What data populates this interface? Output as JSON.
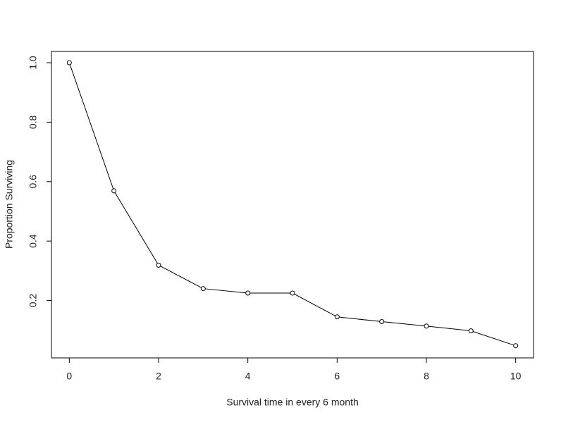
{
  "chart_data": {
    "type": "line",
    "x_label": "Survival time in every 6 month",
    "y_label": "Proportion Surviving",
    "x": [
      0,
      1,
      2,
      3,
      4,
      5,
      6,
      7,
      8,
      9,
      10
    ],
    "series": [
      {
        "name": "Proportion Surviving",
        "color": "#000000",
        "values": [
          1.0,
          0.569,
          0.319,
          0.24,
          0.225,
          0.225,
          0.145,
          0.129,
          0.114,
          0.098,
          0.048
        ]
      }
    ],
    "xlim": [
      -0.4,
      10.4
    ],
    "xticks": [
      0,
      2,
      4,
      6,
      8,
      10
    ],
    "ylim": [
      0.007,
      1.038
    ],
    "yticks": [
      0.2,
      0.4,
      0.6,
      0.8,
      {
        "value": 1,
        "label": "1.0"
      }
    ],
    "grid": false
  }
}
